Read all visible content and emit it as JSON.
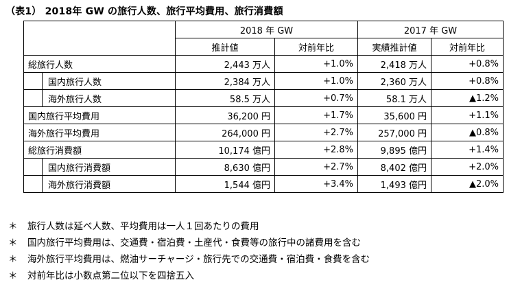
{
  "title": "（表1） 2018年 GW の旅行人数、旅行平均費用、旅行消費額",
  "header": {
    "group_2018": "2018 年 GW",
    "group_2017": "2017 年 GW",
    "col_est_2018": "推計値",
    "col_yoy_2018": "対前年比",
    "col_est_2017": "実績推計値",
    "col_yoy_2017": "対前年比"
  },
  "rows": [
    {
      "label": "総旅行人数",
      "indent": false,
      "v2018": "2,443 万人",
      "y2018": "+1.0%",
      "v2017": "2,418 万人",
      "y2017": "+0.8%"
    },
    {
      "label": "国内旅行人数",
      "indent": true,
      "v2018": "2,384 万人",
      "y2018": "+1.0%",
      "v2017": "2,360 万人",
      "y2017": "+0.8%"
    },
    {
      "label": "海外旅行人数",
      "indent": true,
      "v2018": "58.5 万人",
      "y2018": "+0.7%",
      "v2017": "58.1 万人",
      "y2017": "▲1.2%"
    },
    {
      "label": "国内旅行平均費用",
      "indent": false,
      "v2018": "36,200 円",
      "y2018": "+1.7%",
      "v2017": "35,600 円",
      "y2017": "+1.1%"
    },
    {
      "label": "海外旅行平均費用",
      "indent": false,
      "v2018": "264,000 円",
      "y2018": "+2.7%",
      "v2017": "257,000 円",
      "y2017": "▲0.8%"
    },
    {
      "label": "総旅行消費額",
      "indent": false,
      "v2018": "10,174 億円",
      "y2018": "+2.8%",
      "v2017": "9,895 億円",
      "y2017": "+1.4%"
    },
    {
      "label": "国内旅行消費額",
      "indent": true,
      "v2018": "8,630 億円",
      "y2018": "+2.7%",
      "v2017": "8,402 億円",
      "y2017": "+2.0%"
    },
    {
      "label": "海外旅行消費額",
      "indent": true,
      "v2018": "1,544 億円",
      "y2018": "+3.4%",
      "v2017": "1,493 億円",
      "y2017": "▲2.0%"
    }
  ],
  "notes": [
    {
      "mark": "＊",
      "text": "旅行人数は延べ人数、平均費用は一人１回あたりの費用"
    },
    {
      "mark": "＊",
      "text": "国内旅行平均費用は、交通費・宿泊費・土産代・食費等の旅行中の諸費用を含む"
    },
    {
      "mark": "＊",
      "text": "海外旅行平均費用は、燃油サーチャージ・旅行先での交通費・宿泊費・食費を含む"
    },
    {
      "mark": "＊",
      "text": "対前年比は小数点第二位以下を四捨五入"
    }
  ]
}
